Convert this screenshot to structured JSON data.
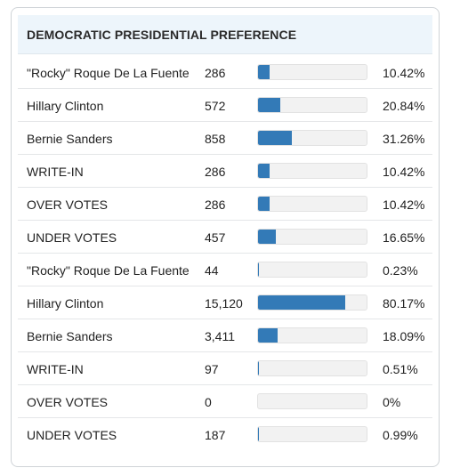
{
  "panel": {
    "title": "DEMOCRATIC PRESIDENTIAL PREFERENCE"
  },
  "colors": {
    "bar_fill": "#337ab7",
    "bar_track": "#f2f2f2",
    "header_bg": "#edf5fb"
  },
  "results": [
    {
      "name": "\"Rocky\" Roque De La Fuente",
      "votes": "286",
      "percent": "10.42%",
      "share": 0.1042
    },
    {
      "name": "Hillary Clinton",
      "votes": "572",
      "percent": "20.84%",
      "share": 0.2084
    },
    {
      "name": "Bernie Sanders",
      "votes": "858",
      "percent": "31.26%",
      "share": 0.3126
    },
    {
      "name": "WRITE-IN",
      "votes": "286",
      "percent": "10.42%",
      "share": 0.1042
    },
    {
      "name": "OVER VOTES",
      "votes": "286",
      "percent": "10.42%",
      "share": 0.1042
    },
    {
      "name": "UNDER VOTES",
      "votes": "457",
      "percent": "16.65%",
      "share": 0.1665
    },
    {
      "name": "\"Rocky\" Roque De La Fuente",
      "votes": "44",
      "percent": "0.23%",
      "share": 0.0023
    },
    {
      "name": "Hillary Clinton",
      "votes": "15,120",
      "percent": "80.17%",
      "share": 0.8017
    },
    {
      "name": "Bernie Sanders",
      "votes": "3,411",
      "percent": "18.09%",
      "share": 0.1809
    },
    {
      "name": "WRITE-IN",
      "votes": "97",
      "percent": "0.51%",
      "share": 0.0051
    },
    {
      "name": "OVER VOTES",
      "votes": "0",
      "percent": "0%",
      "share": 0
    },
    {
      "name": "UNDER VOTES",
      "votes": "187",
      "percent": "0.99%",
      "share": 0.0099
    }
  ]
}
